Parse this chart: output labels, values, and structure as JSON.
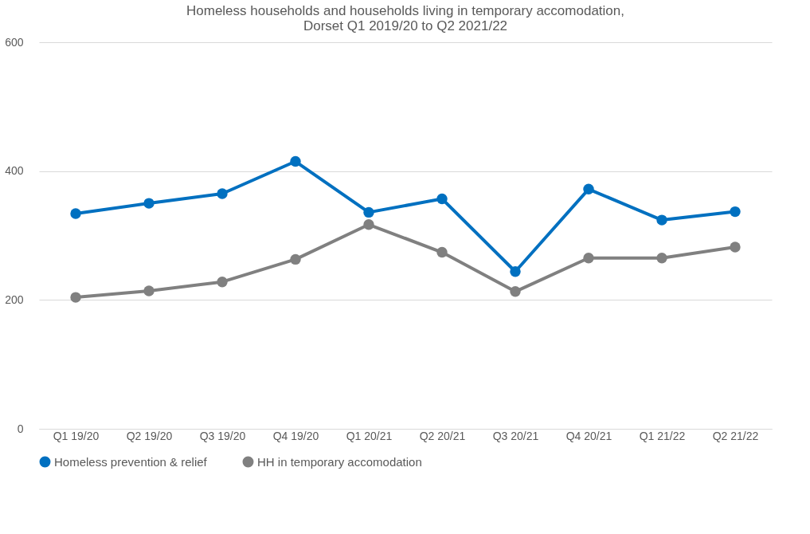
{
  "chart_data": {
    "type": "line",
    "title": [
      "Homeless households and households living in temporary accomodation,",
      "Dorset Q1 2019/20 to Q2 2021/22"
    ],
    "categories": [
      "Q1 19/20",
      "Q2 19/20",
      "Q3 19/20",
      "Q4 19/20",
      "Q1 20/21",
      "Q2 20/21",
      "Q3 20/21",
      "Q4 20/21",
      "Q1 21/22",
      "Q2 21/22"
    ],
    "series": [
      {
        "name": "Homeless prevention & relief",
        "color": "#0070c0",
        "values": [
          334,
          350,
          365,
          415,
          336,
          357,
          244,
          372,
          324,
          337
        ]
      },
      {
        "name": "HH in temporary accomodation",
        "color": "#808080",
        "values": [
          204,
          214,
          228,
          263,
          317,
          274,
          213,
          265,
          265,
          282
        ]
      }
    ],
    "ylim": [
      0,
      600
    ],
    "yticks": [
      0,
      200,
      400,
      600
    ],
    "grid": "y",
    "legend": "bottom",
    "marker": "circle",
    "line_style": "solid"
  }
}
